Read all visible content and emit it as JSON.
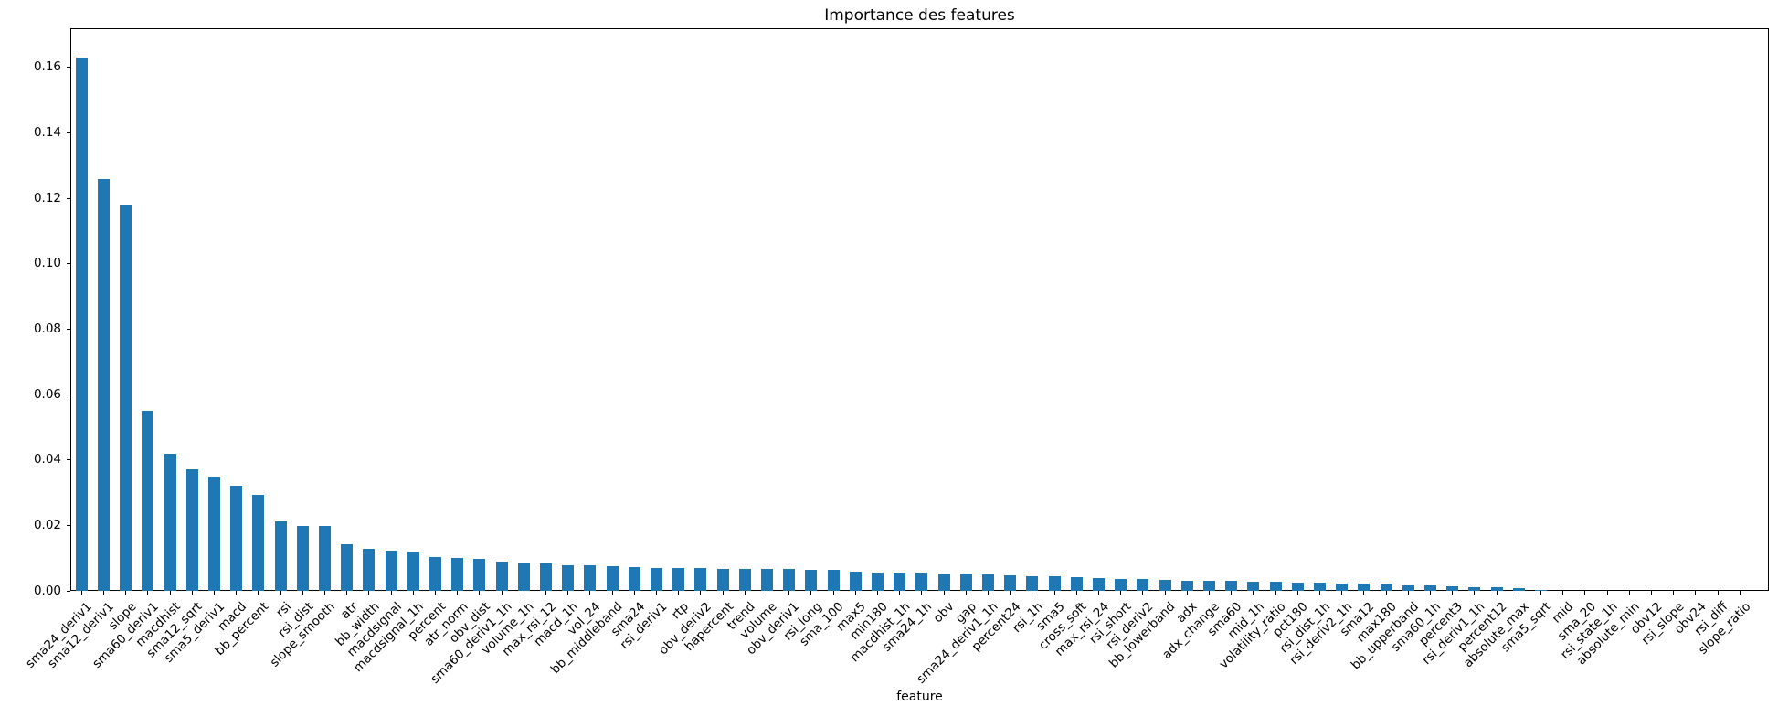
{
  "title": "Importance des features",
  "chart_data": {
    "type": "bar",
    "title": "Importance des features",
    "xlabel": "feature",
    "ylabel": "",
    "bar_color": "#1f77b4",
    "ylim": [
      0,
      0.172
    ],
    "grid": false,
    "legend": false,
    "ytick_labels": [
      "0.00",
      "0.02",
      "0.04",
      "0.06",
      "0.08",
      "0.10",
      "0.12",
      "0.14",
      "0.16"
    ],
    "categories": [
      "sma24_deriv1",
      "sma12_deriv1",
      "slope",
      "sma60_deriv1",
      "macdhist",
      "sma12_sqrt",
      "sma5_deriv1",
      "macd",
      "bb_percent",
      "rsi",
      "rsi_dist",
      "slope_smooth",
      "atr",
      "bb_width",
      "macdsignal",
      "macdsignal_1h",
      "percent",
      "atr_norm",
      "obv_dist",
      "sma60_deriv1_1h",
      "volume_1h",
      "max_rsi_12",
      "macd_1h",
      "vol_24",
      "bb_middleband",
      "sma24",
      "rsi_deriv1",
      "rtp",
      "obv_deriv2",
      "hapercent",
      "trend",
      "volume",
      "obv_deriv1",
      "rsi_long",
      "sma_100",
      "max5",
      "min180",
      "macdhist_1h",
      "sma24_1h",
      "obv",
      "gap",
      "sma24_deriv1_1h",
      "percent24",
      "rsi_1h",
      "sma5",
      "cross_soft",
      "max_rsi_24",
      "rsi_short",
      "rsi_deriv2",
      "bb_lowerband",
      "adx",
      "adx_change",
      "sma60",
      "mid_1h",
      "volatility_ratio",
      "pct180",
      "rsi_dist_1h",
      "rsi_deriv2_1h",
      "sma12",
      "max180",
      "bb_upperband",
      "sma60_1h",
      "percent3",
      "rsi_deriv1_1h",
      "percent12",
      "absolute_max",
      "sma5_sqrt",
      "mid",
      "sma_20",
      "rsi_state_1h",
      "absolute_min",
      "obv12",
      "rsi_slope",
      "obv24",
      "rsi_diff",
      "slope_ratio"
    ],
    "values": [
      0.163,
      0.126,
      0.118,
      0.055,
      0.042,
      0.0372,
      0.035,
      0.032,
      0.0293,
      0.0212,
      0.0198,
      0.0197,
      0.0142,
      0.0127,
      0.0123,
      0.0119,
      0.0102,
      0.01,
      0.0098,
      0.009,
      0.0086,
      0.0083,
      0.0079,
      0.0077,
      0.0074,
      0.0073,
      0.0071,
      0.007,
      0.0069,
      0.0068,
      0.0068,
      0.0068,
      0.0067,
      0.0065,
      0.0064,
      0.006,
      0.0057,
      0.0056,
      0.0055,
      0.0053,
      0.0052,
      0.0051,
      0.0047,
      0.0046,
      0.0045,
      0.0043,
      0.004,
      0.0037,
      0.0035,
      0.0034,
      0.0032,
      0.0031,
      0.003,
      0.0029,
      0.0027,
      0.0026,
      0.0024,
      0.0023,
      0.0022,
      0.0021,
      0.0018,
      0.0017,
      0.0015,
      0.0012,
      0.0011,
      0.0007,
      0.0003,
      0.0001,
      8e-05,
      6e-05,
      5e-05,
      4e-05,
      3e-05,
      2e-05,
      1e-05,
      5e-06
    ]
  }
}
